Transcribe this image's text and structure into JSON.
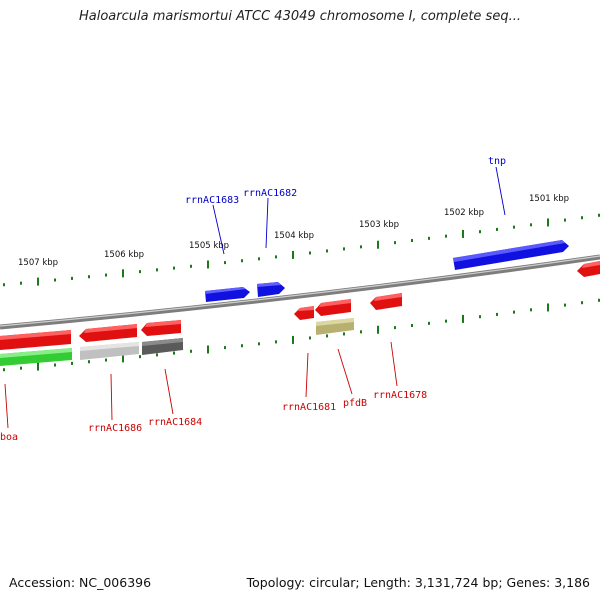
{
  "title": "Haloarcula marismortui ATCC 43049 chromosome I, complete seq...",
  "footer": {
    "accession": "Accession: NC_006396",
    "summary": "Topology: circular; Length: 3,131,724 bp; Genes: 3,186"
  },
  "scale_labels": [
    "1507 kbp",
    "1506 kbp",
    "1505 kbp",
    "1504 kbp",
    "1503 kbp",
    "1502 kbp",
    "1501 kbp"
  ],
  "gene_labels": {
    "tnp": "tnp",
    "rrnAC1683": "rrnAC1683",
    "rrnAC1682": "rrnAC1682",
    "boa": "boa",
    "rrnAC1686": "rrnAC1686",
    "rrnAC1684": "rrnAC1684",
    "rrnAC1681": "rrnAC1681",
    "pfdB": "pfdB",
    "rrnAC1678": "rrnAC1678"
  },
  "colors": {
    "forward_label": "#0000cc",
    "reverse_label": "#cc0000",
    "tick": "#1a7a1a",
    "blue_gene": "#1010e0",
    "red_gene": "#e01010",
    "green_gene": "#33cc33",
    "light_gray_gene": "#c0c0c0",
    "dark_gray_gene": "#5a5a5a",
    "olive_gene": "#b8b070"
  }
}
